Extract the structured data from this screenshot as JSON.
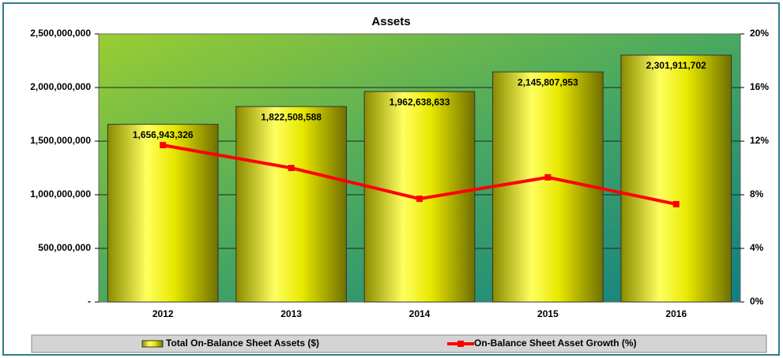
{
  "chart_data": {
    "type": "bar_line",
    "title": "Assets",
    "categories": [
      "2012",
      "2013",
      "2014",
      "2015",
      "2016"
    ],
    "series": [
      {
        "name": "Total On-Balance Sheet Assets ($)",
        "type": "bar",
        "color": "#e8e800",
        "values": [
          1656943326,
          1822508588,
          1962638633,
          2145807953,
          2301911702
        ],
        "value_labels": [
          "1,656,943,326",
          "1,822,508,588",
          "1,962,638,633",
          "2,145,807,953",
          "2,301,911,702"
        ]
      },
      {
        "name": "On-Balance Sheet Asset Growth (%)",
        "type": "line",
        "axis": "y2",
        "color": "#ff0000",
        "values": [
          11.7,
          10.0,
          7.7,
          9.3,
          7.3
        ]
      }
    ],
    "ylim": [
      0,
      2500000000
    ],
    "yticks": [
      {
        "value": 0,
        "label": "-"
      },
      {
        "value": 500000000,
        "label": "500,000,000"
      },
      {
        "value": 1000000000,
        "label": "1,000,000,000"
      },
      {
        "value": 1500000000,
        "label": "1,500,000,000"
      },
      {
        "value": 2000000000,
        "label": "2,000,000,000"
      },
      {
        "value": 2500000000,
        "label": "2,500,000,000"
      }
    ],
    "y2lim": [
      0,
      20
    ],
    "y2ticks": [
      {
        "value": 0,
        "label": "0%"
      },
      {
        "value": 4,
        "label": "4%"
      },
      {
        "value": 8,
        "label": "8%"
      },
      {
        "value": 12,
        "label": "12%"
      },
      {
        "value": 16,
        "label": "16%"
      },
      {
        "value": 20,
        "label": "20%"
      }
    ],
    "grid": true
  }
}
